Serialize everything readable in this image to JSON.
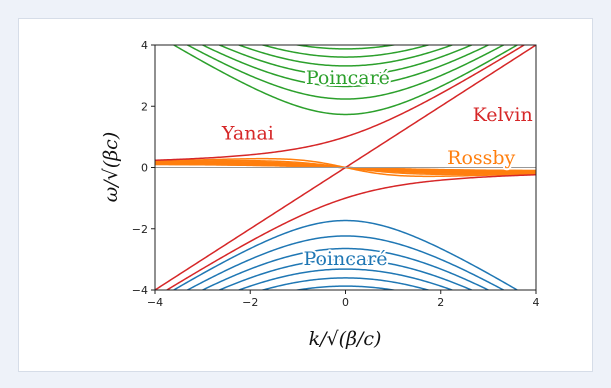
{
  "colors": {
    "poincare_upper": "#2ca02c",
    "poincare_lower": "#1f77b4",
    "kelvin": "#d62728",
    "yanai": "#d62728",
    "rossby": "#ff7f0e",
    "frame": "#222222"
  },
  "chart_data": {
    "type": "line",
    "title": "",
    "xlabel": "k/√(β/c)",
    "ylabel": "ω/√(βc)",
    "xlim": [
      -4,
      4
    ],
    "ylim": [
      -4,
      4
    ],
    "x_ticks": [
      -4,
      -2,
      0,
      2,
      4
    ],
    "y_ticks": [
      -4,
      -2,
      0,
      2,
      4
    ],
    "x_tick_labels": [
      "−4",
      "−2",
      "0",
      "2",
      "4"
    ],
    "y_tick_labels": [
      "−4",
      "−2",
      "0",
      "2",
      "4"
    ],
    "grid": false,
    "annotations": [
      {
        "text": "Poincaré",
        "color": "#2ca02c",
        "x": 0.05,
        "y": 2.95
      },
      {
        "text": "Poincaré",
        "color": "#1f77b4",
        "x": 0.0,
        "y": -2.95
      },
      {
        "text": "Kelvin",
        "color": "#d62728",
        "x": 3.3,
        "y": 1.75
      },
      {
        "text": "Yanai",
        "color": "#d62728",
        "x": -2.05,
        "y": 1.15
      },
      {
        "text": "Rossby",
        "color": "#ff7f0e",
        "x": 2.85,
        "y": 0.35
      }
    ],
    "series": [
      {
        "family": "kelvin",
        "formula": "omega = k",
        "modes": []
      },
      {
        "family": "yanai",
        "formula": "omega = k/2 ± sqrt(k^2/4 + 1)",
        "modes": [
          0
        ]
      },
      {
        "family": "poincare",
        "formula": "omega^2 = k^2 + 2n + 1",
        "modes": [
          1,
          2,
          3,
          4,
          5,
          6,
          7,
          8
        ]
      },
      {
        "family": "rossby",
        "formula": "omega = -k / (k^2 + 2n + 1)",
        "modes": [
          1,
          2,
          3,
          4,
          5,
          6,
          7,
          8,
          9,
          10,
          11,
          12
        ]
      }
    ]
  }
}
